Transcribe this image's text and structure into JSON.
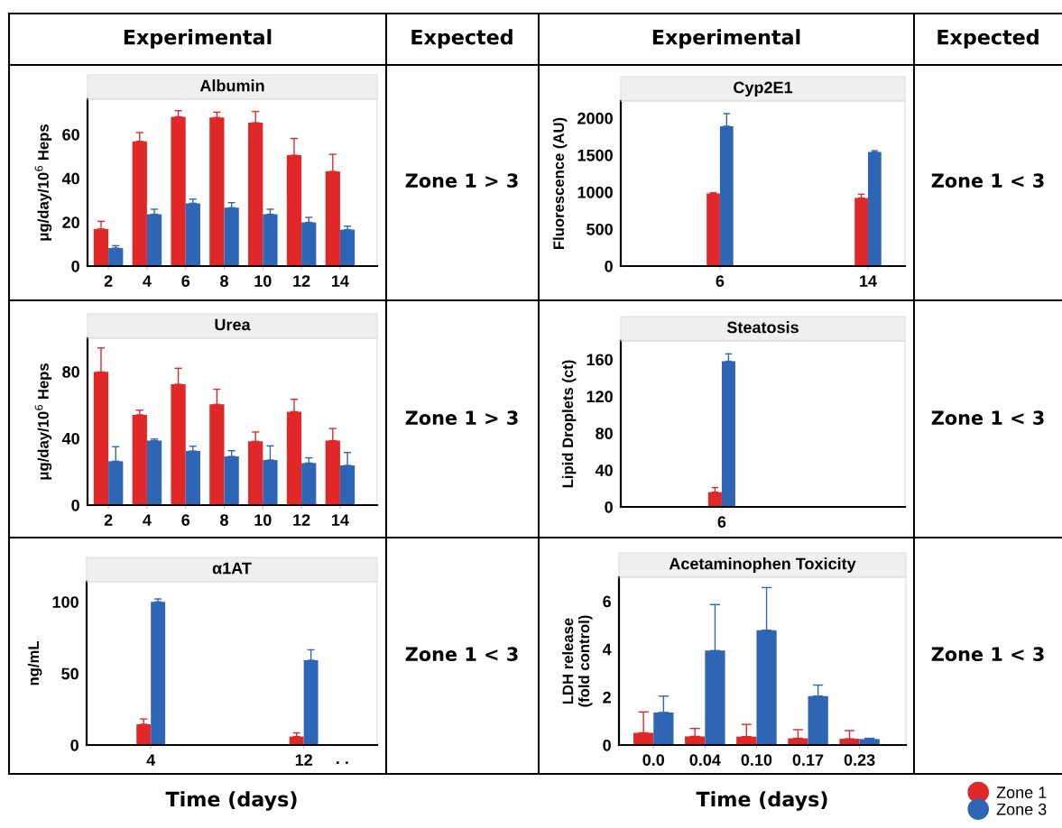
{
  "chart_data": [
    {
      "type": "bar",
      "title": "Albumin",
      "ylabel": "μg/day/10$^{6}$ Heps",
      "categories": [
        "2",
        "4",
        "6",
        "8",
        "10",
        "12",
        "14"
      ],
      "ylim": [
        0,
        76
      ],
      "yticks": [
        0,
        20,
        40,
        60
      ],
      "annotations": [
        "Zone 1 > 3"
      ],
      "series": [
        {
          "color": "#e02828",
          "values": [
            16.9,
            56.8,
            68,
            67.7,
            65.3,
            50.5,
            43.1
          ],
          "errors": [
            [
              16.9,
              20.4
            ],
            [
              56.8,
              60.8
            ],
            [
              68,
              70.8
            ],
            [
              67.7,
              70.1
            ],
            [
              65.3,
              70.4
            ],
            [
              50.5,
              58.1
            ],
            [
              43.1,
              50.9
            ]
          ]
        },
        {
          "color": "#2e66b5",
          "values": [
            8.2,
            23.6,
            28.6,
            26.6,
            23.6,
            19.9,
            16.6
          ],
          "errors": [
            [
              8.2,
              9.3
            ],
            [
              23.6,
              25.9
            ],
            [
              28.6,
              30.5
            ],
            [
              26.6,
              28.9
            ],
            [
              23.6,
              25.9
            ],
            [
              19.9,
              22.2
            ],
            [
              16.6,
              18.2
            ]
          ]
        }
      ]
    },
    {
      "type": "bar",
      "title": "Urea",
      "ylabel": "μg/day/10$^{6}$ Heps",
      "categories": [
        "2",
        "4",
        "6",
        "8",
        "10",
        "12",
        "14"
      ],
      "ylim": [
        0,
        100
      ],
      "yticks": [
        0,
        40,
        80
      ],
      "annotations": [
        "Zone 1 > 3"
      ],
      "series": [
        {
          "color": "#e02828",
          "values": [
            79.8,
            54.1,
            72.4,
            60.4,
            38.2,
            56,
            38.6
          ],
          "errors": [
            [
              79.8,
              94.2
            ],
            [
              54.1,
              56.9
            ],
            [
              72.4,
              82
            ],
            [
              60.4,
              69.4
            ],
            [
              38.2,
              43.8
            ],
            [
              56,
              63.4
            ],
            [
              38.6,
              45.9
            ]
          ]
        },
        {
          "color": "#2e66b5",
          "values": [
            26.3,
            38.6,
            32.4,
            29.2,
            27,
            25.2,
            23.8
          ],
          "errors": [
            [
              26.3,
              35
            ],
            [
              38.6,
              39.6
            ],
            [
              32.4,
              35.3
            ],
            [
              29.2,
              32.6
            ],
            [
              27,
              35.5
            ],
            [
              25.2,
              28.3
            ],
            [
              23.8,
              31.5
            ]
          ]
        }
      ]
    },
    {
      "type": "bar",
      "title": "α1AT",
      "ylabel": "ng/mL",
      "xlabel": "Time (days)",
      "categories": [
        "4",
        "12"
      ],
      "ylim": [
        0,
        114
      ],
      "yticks": [
        0,
        50,
        100
      ],
      "annotations": [
        "Zone 1 < 3",
        ". ."
      ],
      "series": [
        {
          "color": "#e02828",
          "values": [
            14.5,
            5.9
          ],
          "errors": [
            [
              14.5,
              18.2
            ],
            [
              5.9,
              8.5
            ]
          ]
        },
        {
          "color": "#2e66b5",
          "values": [
            100,
            59.2
          ],
          "errors": [
            [
              100,
              102
            ],
            [
              59.2,
              66.5
            ]
          ]
        }
      ]
    },
    {
      "type": "bar",
      "title": "Cyp2E1",
      "ylabel": "Fluorescence (AU)",
      "categories": [
        "6",
        "14"
      ],
      "ylim": [
        0,
        2230
      ],
      "yticks": [
        0,
        500,
        1000,
        1500,
        2000
      ],
      "annotations": [
        "Zone 1 < 3"
      ],
      "series": [
        {
          "color": "#e02828",
          "values": [
            980,
            920
          ],
          "errors": [
            [
              980,
              990
            ],
            [
              920,
              970
            ]
          ]
        },
        {
          "color": "#2e66b5",
          "values": [
            1890,
            1540
          ],
          "errors": [
            [
              1890,
              2060
            ],
            [
              1540,
              1560
            ]
          ]
        }
      ]
    },
    {
      "type": "bar",
      "title": "Steatosis",
      "ylabel": "Lipid Droplets (ct)",
      "categories": [
        "6"
      ],
      "ylim": [
        0,
        180
      ],
      "yticks": [
        0,
        40,
        80,
        120,
        160
      ],
      "annotations": [
        "Zone 1 < 3"
      ],
      "series": [
        {
          "color": "#e02828",
          "values": [
            16
          ],
          "errors": [
            [
              16,
              21
            ]
          ]
        },
        {
          "color": "#2e66b5",
          "values": [
            158
          ],
          "errors": [
            [
              158,
              166
            ]
          ]
        }
      ]
    },
    {
      "type": "bar",
      "title": "Acetaminophen Toxicity",
      "ylabel": "LDH release\n(fold control)",
      "xlabel": "Time (days)",
      "categories": [
        "0.0",
        "0.04",
        "0.10",
        "0.17",
        "0.23"
      ],
      "ylim": [
        0,
        7
      ],
      "yticks": [
        0,
        2,
        4,
        6
      ],
      "annotations": [
        "Zone 1 < 3"
      ],
      "legend": "bottom right",
      "series": [
        {
          "name": "Zone 1",
          "color": "#e02828",
          "values": [
            0.51,
            0.36,
            0.35,
            0.28,
            0.26
          ],
          "errors": [
            [
              0.51,
              1.38
            ],
            [
              0.36,
              0.69
            ],
            [
              0.35,
              0.86
            ],
            [
              0.28,
              0.64
            ],
            [
              0.26,
              0.6
            ]
          ]
        },
        {
          "name": "Zone 3",
          "color": "#2e66b5",
          "values": [
            1.36,
            3.94,
            4.79,
            2.04,
            0.25
          ],
          "errors": [
            [
              1.36,
              2.04
            ],
            [
              3.94,
              5.86
            ],
            [
              4.79,
              6.57
            ],
            [
              2.04,
              2.5
            ],
            [
              0.25,
              0.28
            ]
          ]
        }
      ]
    },
    {
      "type": "other",
      "annotations": [
        "Experimental",
        "Expected",
        "Experimental",
        "Expected"
      ]
    }
  ]
}
